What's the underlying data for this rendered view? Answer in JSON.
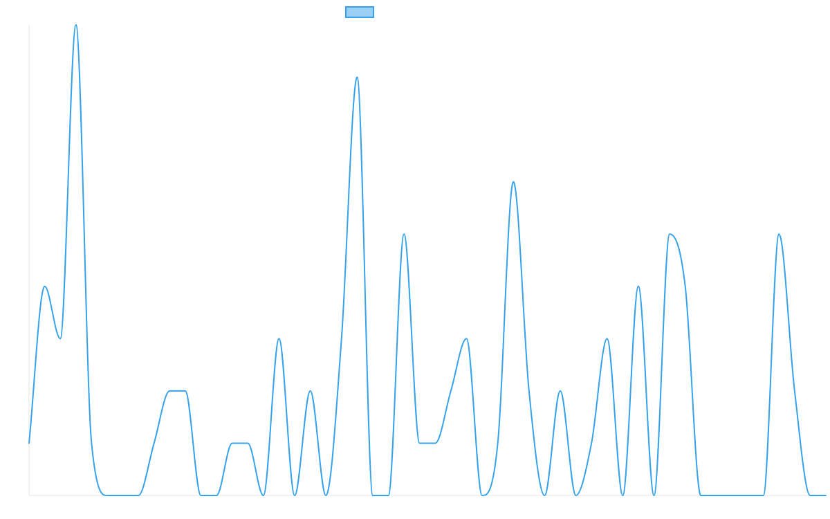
{
  "chart_data": {
    "type": "line",
    "title": "",
    "xlabel": "",
    "ylabel": "",
    "x": [
      0,
      1,
      2,
      3,
      4,
      5,
      6,
      7,
      8,
      9,
      10,
      11,
      12,
      13,
      14,
      15,
      16,
      17,
      18,
      19,
      20,
      21,
      22,
      23,
      24,
      25,
      26,
      27,
      28,
      29,
      30,
      31,
      32,
      33,
      34,
      35,
      36,
      37,
      38,
      39,
      40,
      41,
      42,
      43,
      44,
      45,
      46,
      47,
      48,
      49,
      50,
      51
    ],
    "series": [
      {
        "name": "",
        "color": "#36a2eb",
        "fill": "#9ad0f5",
        "values": [
          1,
          4,
          3,
          9,
          1,
          0,
          0,
          0,
          1,
          2,
          2,
          0,
          0,
          1,
          1,
          0,
          3,
          0,
          2,
          0,
          3,
          8,
          0,
          0,
          5,
          1,
          1,
          2,
          3,
          0,
          1,
          6,
          2,
          0,
          2,
          0,
          1,
          3,
          0,
          4,
          0,
          5,
          4,
          0,
          0,
          0,
          0,
          0,
          5,
          2,
          0,
          0
        ]
      }
    ],
    "ylim": [
      0,
      9
    ],
    "grid": false,
    "legend": "top-center"
  }
}
